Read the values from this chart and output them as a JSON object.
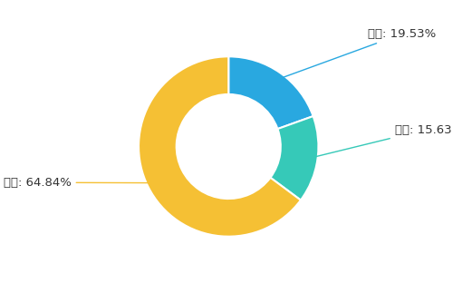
{
  "labels": [
    "好转",
    "不变",
    "不佳"
  ],
  "values": [
    19.53,
    15.63,
    64.84
  ],
  "colors": [
    "#29A8E0",
    "#36C9B8",
    "#F5C034"
  ],
  "label_texts": [
    "好转: 19.53%",
    "不变: 15.63",
    "不佳: 64.84%"
  ],
  "label_text_colors": [
    "#333333",
    "#333333",
    "#333333"
  ],
  "connector_colors": [
    "#29A8E0",
    "#36C9B8",
    "#F5C034"
  ],
  "background_color": "#ffffff",
  "donut_width": 0.42,
  "start_angle": 90,
  "figsize": [
    5.0,
    3.23
  ],
  "dpi": 100
}
